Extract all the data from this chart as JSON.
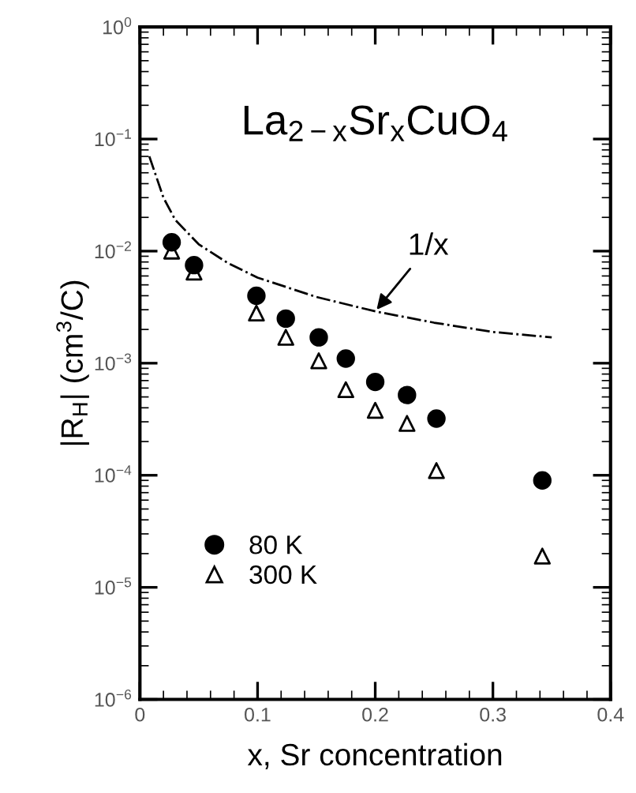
{
  "chart_data": {
    "type": "scatter",
    "title": "La$_{2−x}$Sr$_{x}$CuO$_{4}$",
    "xlabel": "x, Sr concentration",
    "ylabel": "|R$_{H}$| (cm$^{3}$/C)",
    "log": "y",
    "xlim": [
      0,
      0.4
    ],
    "ylim": [
      1e-06,
      1
    ],
    "xticks": [
      0,
      0.1,
      0.2,
      0.3,
      0.4
    ],
    "yticks": [
      {
        "value": 1e-06,
        "label": "10$^{−6}$"
      },
      {
        "value": 1e-05,
        "label": "10$^{−5}$"
      },
      {
        "value": 0.0001,
        "label": "10$^{−4}$"
      },
      {
        "value": 0.001,
        "label": "10$^{−3}$"
      },
      {
        "value": 0.01,
        "label": "10$^{−2}$"
      },
      {
        "value": 0.1,
        "label": "10$^{−1}$"
      },
      {
        "value": 1,
        "label": "10$^{0}$"
      }
    ],
    "grid": false,
    "legend": "left",
    "series": [
      {
        "name": "80 K",
        "marker": "circle",
        "color": "#000000",
        "x": [
          0.027,
          0.046,
          0.099,
          0.124,
          0.152,
          0.175,
          0.2,
          0.227,
          0.252,
          0.342
        ],
        "values": [
          0.012,
          0.0075,
          0.004,
          0.0025,
          0.0017,
          0.0011,
          0.00068,
          0.00052,
          0.00032,
          9e-05
        ]
      },
      {
        "name": "300 K",
        "marker": "triangle",
        "color": "#000000",
        "x": [
          0.027,
          0.046,
          0.099,
          0.124,
          0.152,
          0.175,
          0.2,
          0.227,
          0.252,
          0.342
        ],
        "values": [
          0.01,
          0.0065,
          0.0028,
          0.0017,
          0.00105,
          0.00058,
          0.00038,
          0.00029,
          0.00011,
          1.9e-05
        ]
      },
      {
        "type": "line",
        "line_style": "dashdot",
        "color": "#000000",
        "x": [
          0.008,
          0.02,
          0.03,
          0.05,
          0.075,
          0.1,
          0.15,
          0.2,
          0.25,
          0.3,
          0.35
        ],
        "values": [
          0.07,
          0.03,
          0.019,
          0.0115,
          0.0078,
          0.0058,
          0.0039,
          0.0029,
          0.0023,
          0.0019,
          0.0017
        ]
      }
    ],
    "annotations": [
      {
        "text": "1/x",
        "x": 0.2,
        "y": 0.0029
      }
    ]
  }
}
